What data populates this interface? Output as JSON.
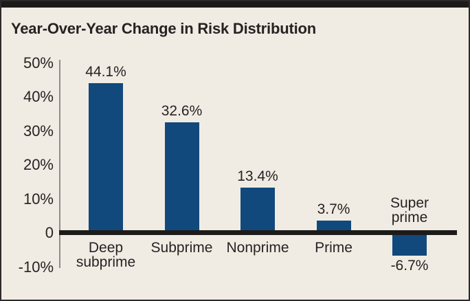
{
  "chart_data": {
    "type": "bar",
    "title": "Year-Over-Year Change in Risk Distribution",
    "categories": [
      "Deep subprime",
      "Subprime",
      "Nonprime",
      "Prime",
      "Super prime"
    ],
    "category_display": [
      "Deep\nsubprime",
      "Subprime",
      "Nonprime",
      "Prime",
      "Super\nprime"
    ],
    "values": [
      44.1,
      32.6,
      13.4,
      3.7,
      -6.7
    ],
    "value_labels": [
      "44.1%",
      "32.6%",
      "13.4%",
      "3.7%",
      "-6.7%"
    ],
    "xlabel": "",
    "ylabel": "",
    "ylim": [
      -10,
      50
    ],
    "yticks": [
      50,
      40,
      30,
      20,
      10,
      0,
      -10
    ],
    "ytick_labels": [
      "50%",
      "40%",
      "30%",
      "20%",
      "10%",
      "0",
      "-10%"
    ],
    "grid": false,
    "legend": false,
    "colors": {
      "bar": "#11497c",
      "background": "#f0ece3",
      "text": "#272223",
      "axis_line": "#8e8b8b",
      "zero_line": "#1d1a1a",
      "top_bar": "#1d1a1a",
      "frame_border": "#2e2a2b"
    }
  }
}
